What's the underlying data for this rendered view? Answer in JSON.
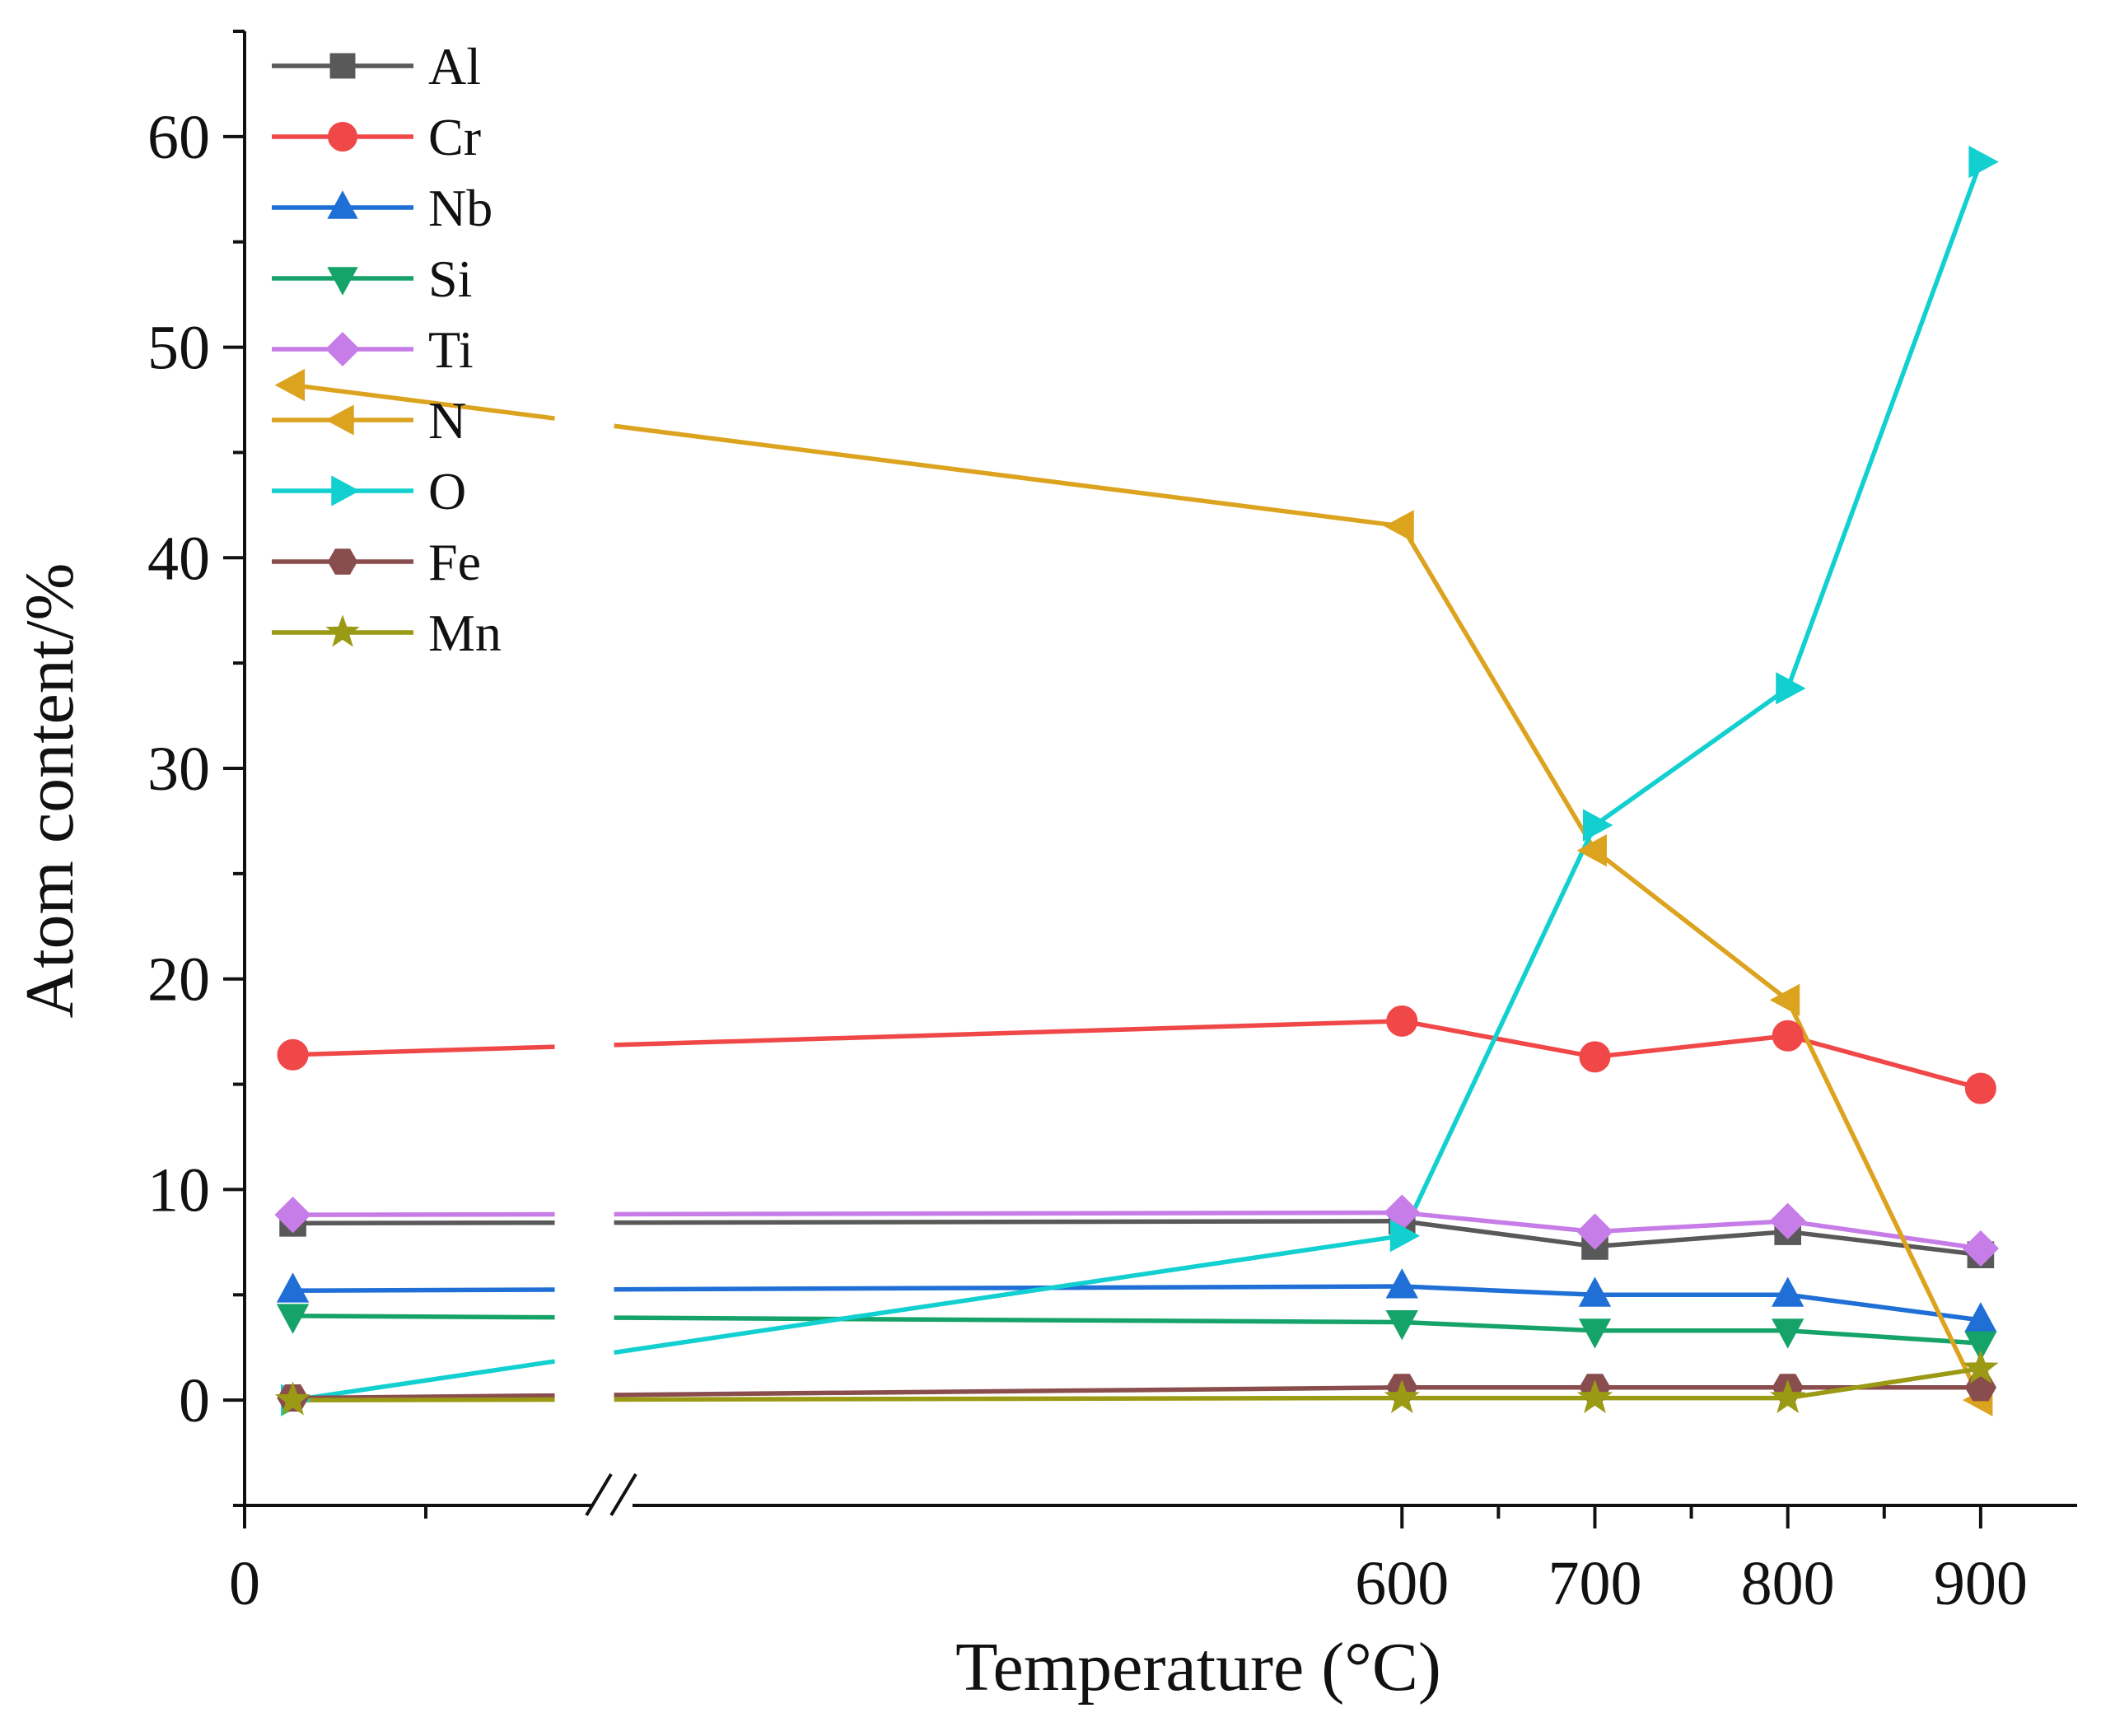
{
  "chart_data": {
    "type": "line",
    "title": "",
    "xlabel": "Temperature (°C)",
    "ylabel": "Atom content/%",
    "x": [
      25,
      600,
      700,
      800,
      900
    ],
    "x_tick_labels": [
      "0",
      "600",
      "700",
      "800",
      "900"
    ],
    "x_axis_break": "between 0 and 600",
    "y_ticks": [
      0,
      10,
      20,
      30,
      40,
      50,
      60
    ],
    "y_tick_labels": [
      "0",
      "10",
      "20",
      "30",
      "40",
      "50",
      "60"
    ],
    "ylim": [
      -5,
      65
    ],
    "legend_position": "top-left",
    "grid": false,
    "series": [
      {
        "name": "Al",
        "color": "#595959",
        "marker": "square",
        "values": [
          8.4,
          8.5,
          7.3,
          8.0,
          6.9
        ]
      },
      {
        "name": "Cr",
        "color": "#f04848",
        "marker": "circle",
        "values": [
          16.4,
          18.0,
          16.3,
          17.3,
          14.8
        ]
      },
      {
        "name": "Nb",
        "color": "#1f6fd6",
        "marker": "triangle-up",
        "values": [
          5.2,
          5.4,
          5.0,
          5.0,
          3.8
        ]
      },
      {
        "name": "Si",
        "color": "#16a36a",
        "marker": "triangle-down",
        "values": [
          4.0,
          3.7,
          3.3,
          3.3,
          2.7
        ]
      },
      {
        "name": "Ti",
        "color": "#c77de8",
        "marker": "diamond",
        "values": [
          8.8,
          8.9,
          8.0,
          8.5,
          7.2
        ]
      },
      {
        "name": "N",
        "color": "#dca31f",
        "marker": "triangle-left",
        "values": [
          48.2,
          41.5,
          26.1,
          19.0,
          0.0
        ]
      },
      {
        "name": "O",
        "color": "#12cfd0",
        "marker": "triangle-right",
        "values": [
          0.0,
          7.8,
          27.3,
          33.8,
          58.8
        ]
      },
      {
        "name": "Fe",
        "color": "#8a4d4d",
        "marker": "hexagon",
        "values": [
          0.1,
          0.6,
          0.6,
          0.6,
          0.6
        ]
      },
      {
        "name": "Mn",
        "color": "#9a9a14",
        "marker": "star",
        "values": [
          0.0,
          0.1,
          0.1,
          0.1,
          1.5
        ]
      }
    ]
  }
}
